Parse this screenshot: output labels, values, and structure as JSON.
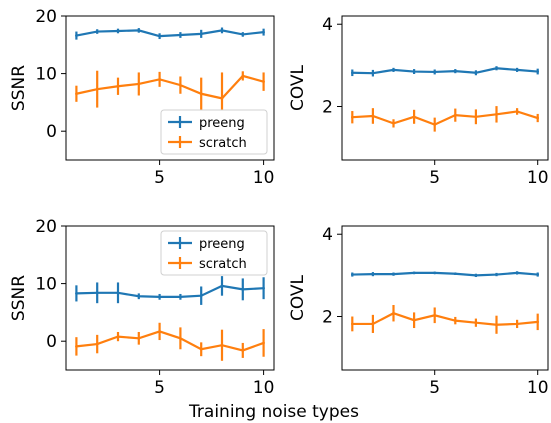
{
  "xlabel": "Training noise types",
  "colors": {
    "preeng": "#1f77b4",
    "scratch": "#ff7f0e"
  },
  "chart_data": [
    {
      "type": "line",
      "ylabel": "SSNR",
      "ylim": [
        -5,
        20
      ],
      "xlim": [
        0.5,
        10.5
      ],
      "yticks": [
        0,
        10,
        20
      ],
      "xticks": [
        5,
        10
      ],
      "legend": "bottom-right",
      "x": [
        1,
        2,
        3,
        4,
        5,
        6,
        7,
        8,
        9,
        10
      ],
      "series": [
        {
          "name": "preeng",
          "values": [
            16.6,
            17.3,
            17.4,
            17.5,
            16.5,
            16.7,
            16.9,
            17.5,
            16.8,
            17.2
          ],
          "err": [
            0.7,
            0.4,
            0.4,
            0.4,
            0.5,
            0.5,
            0.7,
            0.5,
            0.4,
            0.6
          ]
        },
        {
          "name": "scratch",
          "values": [
            6.5,
            7.3,
            7.8,
            8.2,
            9.0,
            8.0,
            6.5,
            5.7,
            9.6,
            8.6
          ],
          "err": [
            1.4,
            3.2,
            1.5,
            2.0,
            1.3,
            1.5,
            2.8,
            4.5,
            0.8,
            1.6
          ]
        }
      ]
    },
    {
      "type": "line",
      "ylabel": "COVL",
      "ylim": [
        0.7,
        4.2
      ],
      "xlim": [
        0.5,
        10.5
      ],
      "yticks": [
        2,
        4
      ],
      "xticks": [
        5,
        10
      ],
      "x": [
        1,
        2,
        3,
        4,
        5,
        6,
        7,
        8,
        9,
        10
      ],
      "series": [
        {
          "name": "preeng",
          "values": [
            2.82,
            2.81,
            2.89,
            2.85,
            2.84,
            2.86,
            2.82,
            2.93,
            2.89,
            2.85
          ],
          "err": [
            0.08,
            0.08,
            0.05,
            0.06,
            0.06,
            0.05,
            0.06,
            0.05,
            0.05,
            0.07
          ]
        },
        {
          "name": "scratch",
          "values": [
            1.74,
            1.77,
            1.59,
            1.75,
            1.56,
            1.79,
            1.75,
            1.81,
            1.88,
            1.72
          ],
          "err": [
            0.15,
            0.19,
            0.1,
            0.17,
            0.17,
            0.16,
            0.18,
            0.2,
            0.08,
            0.1
          ]
        }
      ]
    },
    {
      "type": "line",
      "ylabel": "SSNR",
      "ylim": [
        -5,
        20
      ],
      "xlim": [
        0.5,
        10.5
      ],
      "yticks": [
        0,
        10,
        20
      ],
      "xticks": [
        5,
        10
      ],
      "legend": "top-right",
      "x": [
        1,
        2,
        3,
        4,
        5,
        6,
        7,
        8,
        9,
        10
      ],
      "series": [
        {
          "name": "preeng",
          "values": [
            8.3,
            8.4,
            8.4,
            7.8,
            7.7,
            7.7,
            7.9,
            9.6,
            9.0,
            9.2
          ],
          "err": [
            1.4,
            1.8,
            1.8,
            0.5,
            0.5,
            0.5,
            1.6,
            1.7,
            1.9,
            1.9
          ]
        },
        {
          "name": "scratch",
          "values": [
            -0.9,
            -0.5,
            0.8,
            0.5,
            1.7,
            0.5,
            -1.4,
            -0.7,
            -1.6,
            -0.3
          ],
          "err": [
            1.6,
            1.6,
            0.8,
            1.1,
            1.5,
            1.9,
            1.2,
            2.7,
            1.3,
            2.4
          ]
        }
      ]
    },
    {
      "type": "line",
      "ylabel": "COVL",
      "ylim": [
        0.7,
        4.2
      ],
      "xlim": [
        0.5,
        10.5
      ],
      "yticks": [
        2,
        4
      ],
      "xticks": [
        5,
        10
      ],
      "x": [
        1,
        2,
        3,
        4,
        5,
        6,
        7,
        8,
        9,
        10
      ],
      "series": [
        {
          "name": "preeng",
          "values": [
            3.02,
            3.03,
            3.03,
            3.06,
            3.06,
            3.04,
            3.0,
            3.02,
            3.06,
            3.02
          ],
          "err": [
            0.05,
            0.05,
            0.04,
            0.03,
            0.03,
            0.03,
            0.04,
            0.04,
            0.04,
            0.05
          ]
        },
        {
          "name": "scratch",
          "values": [
            1.82,
            1.82,
            2.08,
            1.91,
            2.03,
            1.9,
            1.85,
            1.8,
            1.82,
            1.87
          ],
          "err": [
            0.18,
            0.22,
            0.2,
            0.19,
            0.19,
            0.09,
            0.1,
            0.22,
            0.1,
            0.2
          ]
        }
      ]
    }
  ]
}
